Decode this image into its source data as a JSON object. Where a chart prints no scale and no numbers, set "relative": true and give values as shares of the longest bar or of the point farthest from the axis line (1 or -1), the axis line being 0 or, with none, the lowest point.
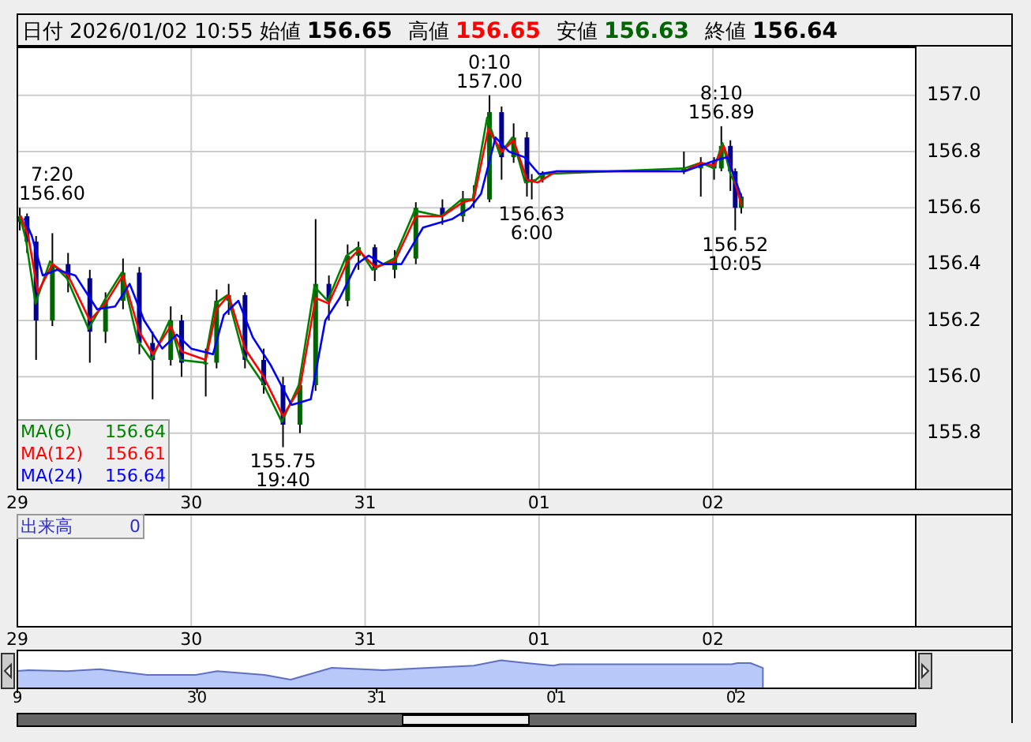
{
  "chart_data": [
    {
      "type": "candlestick",
      "title": "日付 2026/01/02 10:55 始値 156.65 高値 156.65 安値 156.63 終値 156.64",
      "x": [
        "2025-12-29T00:20",
        "2025-12-29T01:20",
        "2025-12-29T02:35",
        "2025-12-29T04:50",
        "2025-12-29T07:00",
        "2025-12-29T10:00",
        "2025-12-29T12:10",
        "2025-12-29T14:35",
        "2025-12-29T16:50",
        "2025-12-29T18:40",
        "2025-12-29T21:10",
        "2025-12-29T22:40",
        "2025-12-30T02:00",
        "2025-12-30T03:30",
        "2025-12-30T05:10",
        "2025-12-30T07:25",
        "2025-12-30T10:00",
        "2025-12-30T12:40",
        "2025-12-30T15:00",
        "2025-12-30T17:10",
        "2025-12-30T19:00",
        "2025-12-30T21:35",
        "2025-12-30T23:05",
        "2025-12-31T01:20",
        "2025-12-31T04:05",
        "2025-12-31T07:00",
        "2025-12-31T10:40",
        "2025-12-31T13:30",
        "2025-12-31T15:00",
        "2025-12-31T17:10",
        "2025-12-31T18:50",
        "2025-12-31T20:30",
        "2025-12-31T22:20",
        "2025-12-31T23:00",
        "2026-01-01T00:30",
        "2026-01-01T20:00",
        "2026-01-01T22:20",
        "2026-01-02T00:10",
        "2026-01-02T01:10",
        "2026-01-02T02:25",
        "2026-01-02T03:05",
        "2026-01-02T03:55"
      ],
      "ohlc": [
        [
          156.55,
          156.6,
          156.52,
          156.57
        ],
        [
          156.57,
          156.58,
          156.44,
          156.48
        ],
        [
          156.48,
          156.5,
          156.06,
          156.2
        ],
        [
          156.2,
          156.51,
          156.18,
          156.4
        ],
        [
          156.4,
          156.44,
          156.3,
          156.35
        ],
        [
          156.35,
          156.38,
          156.05,
          156.16
        ],
        [
          156.16,
          156.3,
          156.12,
          156.27
        ],
        [
          156.27,
          156.42,
          156.24,
          156.37
        ],
        [
          156.37,
          156.39,
          156.08,
          156.12
        ],
        [
          156.12,
          156.16,
          155.92,
          156.06
        ],
        [
          156.06,
          156.25,
          156.04,
          156.2
        ],
        [
          156.2,
          156.22,
          156.0,
          156.05
        ],
        [
          156.05,
          156.1,
          155.93,
          156.05
        ],
        [
          156.05,
          156.31,
          156.03,
          156.27
        ],
        [
          156.27,
          156.33,
          156.22,
          156.29
        ],
        [
          156.29,
          156.3,
          156.03,
          156.06
        ],
        [
          156.06,
          156.1,
          155.94,
          155.97
        ],
        [
          155.97,
          156.0,
          155.75,
          155.83
        ],
        [
          155.83,
          156.0,
          155.8,
          155.97
        ],
        [
          155.97,
          156.56,
          155.95,
          156.33
        ],
        [
          156.33,
          156.36,
          156.2,
          156.27
        ],
        [
          156.27,
          156.47,
          156.25,
          156.43
        ],
        [
          156.43,
          156.48,
          156.38,
          156.46
        ],
        [
          156.46,
          156.47,
          156.34,
          156.38
        ],
        [
          156.38,
          156.45,
          156.35,
          156.42
        ],
        [
          156.42,
          156.62,
          156.4,
          156.6
        ],
        [
          156.6,
          156.63,
          156.54,
          156.57
        ],
        [
          156.57,
          156.66,
          156.55,
          156.63
        ],
        [
          156.63,
          156.68,
          156.6,
          156.63
        ],
        [
          156.63,
          157.0,
          156.62,
          156.94
        ],
        [
          156.94,
          156.96,
          156.7,
          156.78
        ],
        [
          156.78,
          156.9,
          156.76,
          156.85
        ],
        [
          156.85,
          156.87,
          156.64,
          156.69
        ],
        [
          156.69,
          156.72,
          156.63,
          156.7
        ],
        [
          156.7,
          156.73,
          156.69,
          156.72
        ],
        [
          156.73,
          156.8,
          156.72,
          156.74
        ],
        [
          156.74,
          156.78,
          156.64,
          156.76
        ],
        [
          156.76,
          156.78,
          156.7,
          156.74
        ],
        [
          156.74,
          156.89,
          156.73,
          156.82
        ],
        [
          156.82,
          156.84,
          156.66,
          156.73
        ],
        [
          156.73,
          156.74,
          156.52,
          156.6
        ],
        [
          156.6,
          156.65,
          156.58,
          156.64
        ]
      ],
      "series": [
        {
          "name": "MA(6)",
          "type": "line",
          "color": "#008000",
          "x": [
            "2025-12-29T00:20",
            "2025-12-29T01:10",
            "2025-12-29T02:30",
            "2025-12-29T04:30",
            "2025-12-29T06:50",
            "2025-12-29T09:50",
            "2025-12-29T12:00",
            "2025-12-29T14:25",
            "2025-12-29T16:35",
            "2025-12-29T18:30",
            "2025-12-29T21:00",
            "2025-12-29T22:30",
            "2025-12-30T01:50",
            "2025-12-30T03:20",
            "2025-12-30T05:00",
            "2025-12-30T07:10",
            "2025-12-30T09:50",
            "2025-12-30T12:30",
            "2025-12-30T14:50",
            "2025-12-30T17:00",
            "2025-12-30T18:50",
            "2025-12-30T21:25",
            "2025-12-30T23:00",
            "2025-12-31T01:00",
            "2025-12-31T04:00",
            "2025-12-31T06:50",
            "2025-12-31T10:30",
            "2025-12-31T13:20",
            "2025-12-31T14:50",
            "2025-12-31T16:50",
            "2025-12-31T18:35",
            "2025-12-31T20:20",
            "2025-12-31T22:05",
            "2025-12-31T23:35",
            "2026-01-01T00:30",
            "2026-01-01T20:00",
            "2026-01-01T22:20",
            "2026-01-02T00:10",
            "2026-01-02T01:20",
            "2026-01-02T02:25",
            "2026-01-02T03:55"
          ],
          "values": [
            156.57,
            156.49,
            156.26,
            156.41,
            156.35,
            156.17,
            156.27,
            156.37,
            156.13,
            156.06,
            156.2,
            156.06,
            156.05,
            156.26,
            156.29,
            156.08,
            155.98,
            155.84,
            155.97,
            156.32,
            156.27,
            156.43,
            156.46,
            156.38,
            156.42,
            156.59,
            156.57,
            156.63,
            156.63,
            156.92,
            156.79,
            156.85,
            156.69,
            156.7,
            156.72,
            156.74,
            156.76,
            156.74,
            156.83,
            156.72,
            156.64
          ]
        },
        {
          "name": "MA(12)",
          "type": "line",
          "color": "#ff0000",
          "x": [
            "2025-12-29T00:30",
            "2025-12-29T01:30",
            "2025-12-29T02:50",
            "2025-12-29T04:50",
            "2025-12-29T07:00",
            "2025-12-29T10:00",
            "2025-12-29T12:10",
            "2025-12-29T14:35",
            "2025-12-29T16:50",
            "2025-12-29T18:40",
            "2025-12-29T21:10",
            "2025-12-29T22:40",
            "2025-12-30T02:00",
            "2025-12-30T03:30",
            "2025-12-30T05:10",
            "2025-12-30T07:25",
            "2025-12-30T10:00",
            "2025-12-30T12:40",
            "2025-12-30T15:00",
            "2025-12-30T17:10",
            "2025-12-30T19:00",
            "2025-12-30T21:35",
            "2025-12-30T23:05",
            "2025-12-31T01:20",
            "2025-12-31T04:05",
            "2025-12-31T07:00",
            "2025-12-31T10:40",
            "2025-12-31T13:30",
            "2025-12-31T15:00",
            "2025-12-31T17:00",
            "2025-12-31T18:50",
            "2025-12-31T20:30",
            "2025-12-31T22:20",
            "2025-12-31T23:50",
            "2026-01-01T02:25",
            "2026-01-01T20:05",
            "2026-01-01T22:20",
            "2026-01-02T00:10",
            "2026-01-02T01:30",
            "2026-01-02T02:35",
            "2026-01-02T03:55"
          ],
          "values": [
            156.57,
            156.5,
            156.3,
            156.4,
            156.36,
            156.2,
            156.26,
            156.36,
            156.16,
            156.08,
            156.18,
            156.09,
            156.06,
            156.24,
            156.29,
            156.1,
            156.0,
            155.86,
            155.96,
            156.28,
            156.26,
            156.41,
            156.45,
            156.39,
            156.41,
            156.57,
            156.57,
            156.62,
            156.63,
            156.88,
            156.8,
            156.84,
            156.7,
            156.69,
            156.73,
            156.73,
            156.76,
            156.75,
            156.82,
            156.74,
            156.61
          ]
        },
        {
          "name": "MA(24)",
          "type": "line",
          "color": "#0000ff",
          "x": [
            "2025-12-29T01:00",
            "2025-12-29T02:00",
            "2025-12-29T03:30",
            "2025-12-29T05:30",
            "2025-12-29T08:00",
            "2025-12-29T11:00",
            "2025-12-29T13:30",
            "2025-12-29T15:30",
            "2025-12-29T17:30",
            "2025-12-29T20:00",
            "2025-12-29T22:00",
            "2025-12-30T00:00",
            "2025-12-30T03:00",
            "2025-12-30T04:30",
            "2025-12-30T06:30",
            "2025-12-30T08:30",
            "2025-12-30T11:00",
            "2025-12-30T13:50",
            "2025-12-30T16:30",
            "2025-12-30T18:30",
            "2025-12-30T20:30",
            "2025-12-30T22:50",
            "2025-12-31T00:30",
            "2025-12-31T02:30",
            "2025-12-31T05:00",
            "2025-12-31T08:00",
            "2025-12-31T12:00",
            "2025-12-31T14:30",
            "2025-12-31T16:00",
            "2025-12-31T18:00",
            "2025-12-31T19:50",
            "2025-12-31T22:00",
            "2026-01-01T00:00",
            "2026-01-01T02:25",
            "2026-01-01T20:05",
            "2026-01-01T22:20",
            "2026-01-02T00:30",
            "2026-01-02T02:00",
            "2026-01-02T03:55"
          ],
          "values": [
            156.56,
            156.5,
            156.36,
            156.38,
            156.36,
            156.24,
            156.25,
            156.33,
            156.2,
            156.1,
            156.15,
            156.1,
            156.08,
            156.22,
            156.27,
            156.14,
            156.04,
            155.9,
            155.92,
            156.2,
            156.28,
            156.4,
            156.43,
            156.4,
            156.4,
            156.53,
            156.56,
            156.6,
            156.65,
            156.85,
            156.8,
            156.78,
            156.72,
            156.73,
            156.73,
            156.75,
            156.77,
            156.78,
            156.64
          ]
        }
      ],
      "xlim": [
        "2025-12-29",
        "2026-01-03T04:00"
      ],
      "xticks": [
        {
          "value": "2025-12-29",
          "label": "29"
        },
        {
          "value": "2025-12-30",
          "label": "30"
        },
        {
          "value": "2025-12-31",
          "label": "31"
        },
        {
          "value": "2026-01-01",
          "label": "01"
        },
        {
          "value": "2026-01-02",
          "label": "02"
        }
      ],
      "ylim": [
        155.6,
        157.17
      ],
      "yticks": [
        155.8,
        {
          "value": 156.0,
          "label": "156.0"
        },
        156.2,
        156.4,
        156.6,
        156.8,
        {
          "value": 157.0,
          "label": "157.0"
        }
      ],
      "grid": true,
      "legend": "bottom left",
      "annotations": [
        "156.64",
        "156.61",
        "156.64",
        "出来高",
        "0",
        {
          "text": "7:20\n156.60",
          "x": "2025-12-29T00:20",
          "y": 156.6
        },
        {
          "text": "0:10\n157.00",
          "x": "2025-12-31T17:10",
          "y": 157.0
        },
        {
          "text": "156.63\n6:00",
          "x": "2025-12-31T23:00",
          "y": 156.63
        },
        {
          "text": "155.75\n19:40",
          "x": "2025-12-30T12:40",
          "y": 155.75
        },
        {
          "text": "8:10\n156.89",
          "x": "2026-01-02T01:10",
          "y": 156.89
        },
        {
          "text": "156.52\n10:05",
          "x": "2026-01-02T03:05",
          "y": 156.52
        }
      ]
    },
    {
      "type": "area",
      "relative": true,
      "color": "#6070c0",
      "x": [
        "2025-12-29T00:00",
        "2025-12-29T01:30",
        "2025-12-29T06:40",
        "2025-12-29T11:00",
        "2025-12-29T17:20",
        "2025-12-29T23:50",
        "2025-12-30T02:40",
        "2025-12-30T09:00",
        "2025-12-30T12:30",
        "2025-12-30T18:00",
        "2025-12-30T22:00",
        "2025-12-31T00:50",
        "2025-12-31T07:00",
        "2025-12-31T13:00",
        "2025-12-31T16:35",
        "2025-12-31T20:00",
        "2025-12-31T23:35",
        "2026-01-01T00:30",
        "2026-01-01T23:25",
        "2026-01-02T00:10",
        "2026-01-02T01:55",
        "2026-01-02T03:35"
      ],
      "values": [
        0.62,
        0.65,
        0.61,
        0.68,
        0.48,
        0.48,
        0.61,
        0.48,
        0.31,
        0.73,
        0.68,
        0.65,
        0.73,
        0.81,
        1.0,
        0.9,
        0.81,
        0.86,
        0.86,
        0.9,
        0.9,
        0.73
      ],
      "xlim": [
        "2025-12-29",
        "2026-01-03"
      ],
      "xticks": [
        {
          "value": "2025-12-29",
          "label": "9"
        },
        {
          "value": "2025-12-30",
          "label": "30"
        },
        {
          "value": "2025-12-31",
          "label": "31"
        },
        {
          "value": "2026-01-01",
          "label": "01"
        },
        {
          "value": "2026-01-02",
          "label": "02"
        }
      ],
      "tick_labels": "x"
    }
  ]
}
